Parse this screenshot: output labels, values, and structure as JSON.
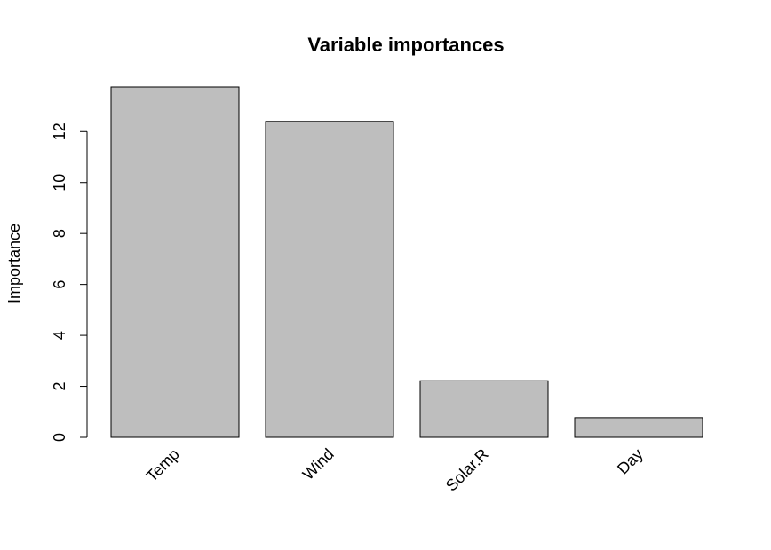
{
  "chart_data": {
    "type": "bar",
    "title": "Variable importances",
    "xlabel": "",
    "ylabel": "Importance",
    "categories": [
      "Temp",
      "Wind",
      "Solar.R",
      "Day"
    ],
    "values": [
      13.75,
      12.4,
      2.22,
      0.77
    ],
    "ylim": [
      0,
      13.75
    ],
    "yticks": [
      0,
      2,
      4,
      6,
      8,
      10,
      12
    ],
    "bar_color": "#bebebe",
    "grid": false,
    "legend": "none"
  }
}
